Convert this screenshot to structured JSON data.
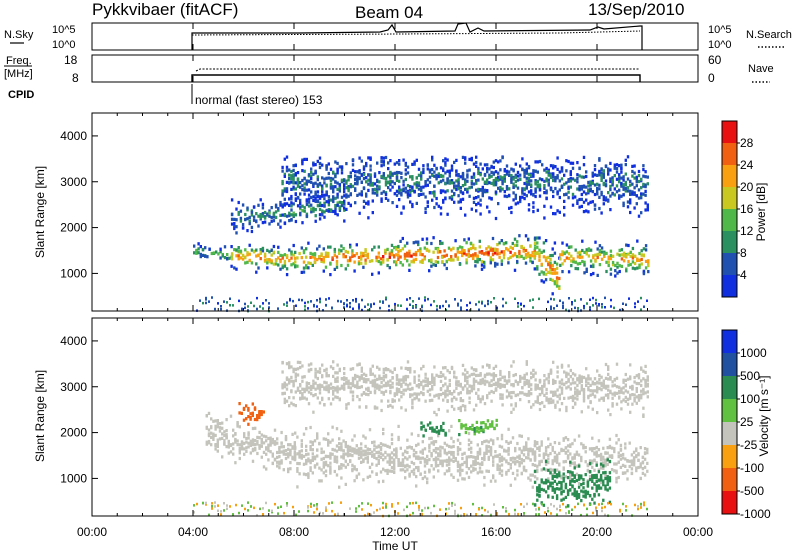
{
  "header": {
    "radar": "Pykkvibaer (fitACF)",
    "beam": "Beam 04",
    "date": "13/Sep/2010"
  },
  "noise_panel": {
    "left_label": "N.Sky",
    "left_ticks": [
      "10^5",
      "10^0"
    ],
    "right_ticks": [
      "10^5",
      "10^0"
    ],
    "right_label": "N.Search"
  },
  "freq_panel": {
    "left_label_line1": "Freq.",
    "left_label_line2": "[MHz]",
    "left_ticks": [
      "18",
      "8"
    ],
    "right_ticks": [
      "60",
      "0"
    ],
    "right_label": "Nave"
  },
  "cpid": {
    "label": "CPID",
    "program": "normal (fast stereo) 153"
  },
  "chart_data": [
    {
      "type": "heatmap",
      "quantity": "Power",
      "ylabel": "Slant Range [km]",
      "ylim": [
        180,
        4500
      ],
      "yticks": [
        1000,
        2000,
        3000,
        4000
      ],
      "xlim_hours": [
        0,
        24
      ],
      "data_extent_hours": [
        4,
        22
      ],
      "colorbar_label": "Power [dB]",
      "colorbar_ticks": [
        "4",
        "8",
        "12",
        "16",
        "20",
        "24",
        "28"
      ],
      "colorbar_colors": [
        "#1030e0",
        "#2050b0",
        "#2a9060",
        "#50b848",
        "#c8c820",
        "#f8a010",
        "#f06010",
        "#e81010"
      ],
      "bands": [
        {
          "from_h": 4.0,
          "to_h": 5.5,
          "center_km": [
            1500,
            1380
          ],
          "width_km": 180,
          "level": 12
        },
        {
          "from_h": 5.5,
          "to_h": 8.0,
          "center_km": [
            1380,
            1300
          ],
          "width_km": 260,
          "level": 24
        },
        {
          "from_h": 8.0,
          "to_h": 12.0,
          "center_km": [
            1300,
            1380
          ],
          "width_km": 300,
          "level": 26
        },
        {
          "from_h": 12.0,
          "to_h": 17.5,
          "center_km": [
            1380,
            1500
          ],
          "width_km": 320,
          "level": 27
        },
        {
          "from_h": 17.5,
          "to_h": 18.5,
          "center_km": [
            1450,
            900
          ],
          "width_km": 500,
          "level": 24
        },
        {
          "from_h": 18.5,
          "to_h": 22.0,
          "center_km": [
            1350,
            1300
          ],
          "width_km": 340,
          "level": 22
        },
        {
          "from_h": 5.5,
          "to_h": 10.0,
          "center_km": [
            2200,
            2500
          ],
          "width_km": 300,
          "level": 10
        },
        {
          "from_h": 7.5,
          "to_h": 22.0,
          "center_km": [
            3050,
            2950
          ],
          "width_km": 600,
          "level": 8
        }
      ]
    },
    {
      "type": "heatmap",
      "quantity": "Velocity",
      "ylabel": "Slant Range [km]",
      "ylim": [
        180,
        4500
      ],
      "yticks": [
        1000,
        2000,
        3000,
        4000
      ],
      "xlim_hours": [
        0,
        24
      ],
      "data_extent_hours": [
        4,
        22
      ],
      "xticks": [
        "00:00",
        "04:00",
        "08:00",
        "12:00",
        "16:00",
        "20:00",
        "00:00"
      ],
      "xlabel": "Time UT",
      "colorbar_label": "Velocity [m s⁻¹]",
      "colorbar_ticks": [
        "1000",
        "500",
        "100",
        "25",
        "-25",
        "-100",
        "-500",
        "-1000"
      ],
      "colorbar_colors": [
        "#1030e0",
        "#2050a0",
        "#2a8c50",
        "#60c040",
        "#c4c4bc",
        "#f8a010",
        "#f06010",
        "#e81010"
      ],
      "bands": [
        {
          "from_h": 4.5,
          "to_h": 8.0,
          "center_km": [
            2000,
            1500
          ],
          "width_km": 420,
          "level": 0
        },
        {
          "from_h": 8.0,
          "to_h": 17.5,
          "center_km": [
            1500,
            1450
          ],
          "width_km": 500,
          "level": 0
        },
        {
          "from_h": 17.5,
          "to_h": 22.0,
          "center_km": [
            1450,
            1400
          ],
          "width_km": 450,
          "level": 0
        },
        {
          "from_h": 17.5,
          "to_h": 20.5,
          "center_km": [
            850,
            900
          ],
          "width_km": 420,
          "level": 300
        },
        {
          "from_h": 7.5,
          "to_h": 22.0,
          "center_km": [
            3100,
            2950
          ],
          "width_km": 500,
          "level": 0
        },
        {
          "from_h": 5.8,
          "to_h": 6.8,
          "center_km": [
            2500,
            2350
          ],
          "width_km": 220,
          "level": -300
        },
        {
          "from_h": 13.0,
          "to_h": 14.0,
          "center_km": [
            2100,
            2050
          ],
          "width_km": 140,
          "level": 200
        },
        {
          "from_h": 14.5,
          "to_h": 16.0,
          "center_km": [
            2100,
            2150
          ],
          "width_km": 160,
          "level": 80
        }
      ]
    }
  ]
}
